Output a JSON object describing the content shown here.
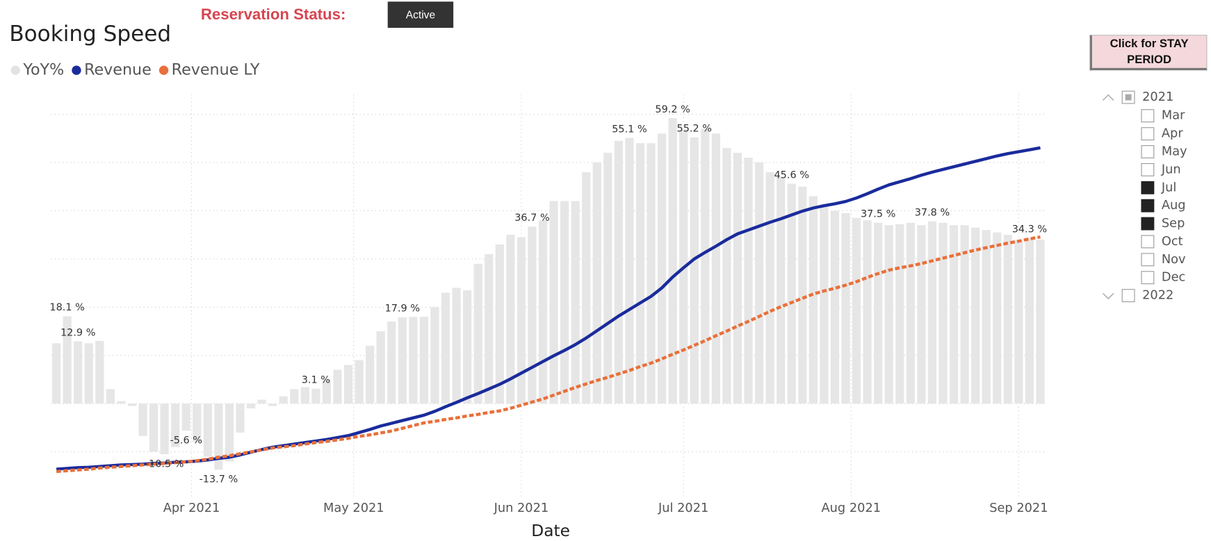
{
  "header": {
    "status_label": "Reservation Status:",
    "status_value": "Active"
  },
  "chart_data": {
    "type": "bar_line",
    "title": "Booking Speed",
    "xlabel": "Date",
    "x": [
      "2021-03-07",
      "2021-03-09",
      "2021-03-11",
      "2021-03-13",
      "2021-03-15",
      "2021-03-17",
      "2021-03-19",
      "2021-03-21",
      "2021-03-23",
      "2021-03-25",
      "2021-03-27",
      "2021-03-29",
      "2021-03-31",
      "2021-04-02",
      "2021-04-04",
      "2021-04-06",
      "2021-04-08",
      "2021-04-10",
      "2021-04-12",
      "2021-04-14",
      "2021-04-16",
      "2021-04-18",
      "2021-04-20",
      "2021-04-22",
      "2021-04-24",
      "2021-04-26",
      "2021-04-28",
      "2021-04-30",
      "2021-05-02",
      "2021-05-04",
      "2021-05-06",
      "2021-05-08",
      "2021-05-10",
      "2021-05-12",
      "2021-05-14",
      "2021-05-16",
      "2021-05-18",
      "2021-05-20",
      "2021-05-22",
      "2021-05-24",
      "2021-05-26",
      "2021-05-28",
      "2021-05-30",
      "2021-06-01",
      "2021-06-03",
      "2021-06-05",
      "2021-06-07",
      "2021-06-09",
      "2021-06-11",
      "2021-06-13",
      "2021-06-15",
      "2021-06-17",
      "2021-06-19",
      "2021-06-21",
      "2021-06-23",
      "2021-06-25",
      "2021-06-27",
      "2021-06-29",
      "2021-07-01",
      "2021-07-03",
      "2021-07-05",
      "2021-07-07",
      "2021-07-09",
      "2021-07-11",
      "2021-07-13",
      "2021-07-15",
      "2021-07-17",
      "2021-07-19",
      "2021-07-21",
      "2021-07-23",
      "2021-07-25",
      "2021-07-27",
      "2021-07-29",
      "2021-07-31",
      "2021-08-02",
      "2021-08-04",
      "2021-08-06",
      "2021-08-08",
      "2021-08-10",
      "2021-08-12",
      "2021-08-14",
      "2021-08-16",
      "2021-08-18",
      "2021-08-20",
      "2021-08-22",
      "2021-08-24",
      "2021-08-26",
      "2021-08-28",
      "2021-08-30",
      "2021-09-01",
      "2021-09-03",
      "2021-09-05"
    ],
    "xlim": [
      "2021-03-06",
      "2021-09-06"
    ],
    "xticks": [
      {
        "value": "2021-04-01",
        "label": "Apr 2021"
      },
      {
        "value": "2021-05-01",
        "label": "May 2021"
      },
      {
        "value": "2021-06-01",
        "label": "Jun 2021"
      },
      {
        "value": "2021-07-01",
        "label": "Jul 2021"
      },
      {
        "value": "2021-08-01",
        "label": "Aug 2021"
      },
      {
        "value": "2021-09-01",
        "label": "Sep 2021"
      }
    ],
    "ylim": [
      -18,
      62
    ],
    "yticks": [
      -10,
      0,
      10,
      20,
      30,
      40,
      50,
      60
    ],
    "y_tick_labels": false,
    "y2lim": [
      0,
      100
    ],
    "grid": true,
    "legend": "top-left",
    "series": [
      {
        "name": "YoY%",
        "type": "bar",
        "color": "#e6e6e6",
        "legend_color": "#e3e3e3",
        "values": [
          12.5,
          18.1,
          12.9,
          12.5,
          13.0,
          3.0,
          0.5,
          -0.5,
          -6.7,
          -10.0,
          -10.5,
          -9.0,
          -5.6,
          -8.0,
          -11.0,
          -13.7,
          -12.0,
          -6.0,
          -1.0,
          0.8,
          -0.5,
          1.5,
          3.0,
          3.4,
          3.1,
          5.0,
          7.0,
          8.0,
          9.0,
          12.0,
          15.0,
          17.0,
          17.9,
          18.0,
          18.0,
          20.0,
          23.0,
          24.0,
          23.5,
          29.0,
          31.0,
          33.0,
          35.0,
          34.5,
          36.7,
          38.0,
          42.0,
          42.0,
          42.0,
          48.0,
          50.0,
          52.0,
          54.5,
          55.1,
          54.0,
          54.0,
          56.0,
          59.2,
          57.0,
          55.2,
          57.0,
          56.0,
          53.0,
          52.0,
          51.0,
          50.0,
          48.0,
          47.0,
          45.6,
          45.0,
          43.0,
          41.0,
          40.0,
          39.5,
          38.5,
          38.0,
          37.5,
          37.0,
          37.2,
          37.5,
          37.0,
          37.8,
          37.5,
          37.0,
          37.0,
          36.5,
          36.0,
          35.5,
          35.0,
          34.0,
          34.3,
          34.0
        ],
        "value_labels": [
          null,
          "18.1 %",
          "12.9 %",
          null,
          null,
          null,
          null,
          null,
          null,
          null,
          "-10.5 %",
          null,
          "-5.6 %",
          null,
          null,
          "-13.7 %",
          null,
          null,
          null,
          null,
          null,
          null,
          null,
          null,
          "3.1 %",
          null,
          null,
          null,
          null,
          null,
          null,
          null,
          "17.9 %",
          null,
          null,
          null,
          null,
          null,
          null,
          null,
          null,
          null,
          null,
          null,
          "36.7 %",
          null,
          null,
          null,
          null,
          null,
          null,
          null,
          null,
          "55.1 %",
          null,
          null,
          null,
          "59.2 %",
          null,
          "55.2 %",
          null,
          null,
          null,
          null,
          null,
          null,
          null,
          null,
          "45.6 %",
          null,
          null,
          null,
          null,
          null,
          null,
          null,
          "37.5 %",
          null,
          null,
          null,
          null,
          "37.8 %",
          null,
          null,
          null,
          null,
          null,
          null,
          null,
          null,
          "34.3 %",
          null
        ]
      },
      {
        "name": "Revenue",
        "type": "line",
        "axis": "y2",
        "color": "#1a2b9c",
        "dashed": false,
        "values": [
          5.5,
          5.7,
          5.9,
          6.0,
          6.2,
          6.4,
          6.6,
          6.7,
          6.8,
          7.0,
          7.1,
          7.3,
          7.4,
          7.6,
          7.9,
          8.3,
          8.6,
          9.2,
          9.9,
          10.6,
          11.2,
          11.6,
          12.0,
          12.4,
          12.8,
          13.2,
          13.7,
          14.2,
          15.0,
          15.8,
          16.7,
          17.4,
          18.1,
          18.8,
          19.5,
          20.5,
          21.7,
          22.8,
          24.0,
          25.1,
          26.3,
          27.5,
          28.9,
          30.4,
          31.9,
          33.4,
          34.9,
          36.3,
          37.8,
          39.5,
          41.4,
          43.3,
          45.2,
          46.9,
          48.6,
          50.3,
          52.5,
          55.3,
          57.7,
          60.0,
          61.7,
          63.3,
          65.0,
          66.5,
          67.5,
          68.5,
          69.5,
          70.4,
          71.4,
          72.4,
          73.2,
          73.8,
          74.3,
          74.9,
          75.8,
          76.9,
          78.1,
          79.2,
          80.0,
          80.8,
          81.7,
          82.5,
          83.2,
          83.9,
          84.6,
          85.3,
          86.0,
          86.7,
          87.3,
          87.8,
          88.3,
          88.8
        ]
      },
      {
        "name": "Revenue LY",
        "type": "line",
        "axis": "y2",
        "color": "#e8703a",
        "dashed": true,
        "values": [
          4.9,
          5.1,
          5.3,
          5.5,
          5.8,
          6.0,
          6.2,
          6.4,
          6.6,
          6.8,
          7.0,
          7.2,
          7.4,
          7.7,
          8.1,
          8.6,
          9.0,
          9.5,
          10.0,
          10.5,
          11.0,
          11.3,
          11.6,
          12.0,
          12.4,
          12.7,
          13.1,
          13.5,
          14.0,
          14.4,
          14.9,
          15.4,
          16.1,
          16.8,
          17.5,
          17.9,
          18.4,
          18.8,
          19.3,
          19.7,
          20.2,
          20.6,
          21.3,
          22.1,
          22.9,
          23.7,
          24.7,
          25.7,
          26.7,
          27.6,
          28.5,
          29.3,
          30.2,
          31.1,
          32.1,
          33.0,
          34.1,
          35.3,
          36.4,
          37.6,
          38.8,
          40.1,
          41.3,
          42.6,
          43.8,
          45.1,
          46.4,
          47.6,
          48.7,
          49.8,
          50.9,
          51.7,
          52.4,
          53.2,
          54.1,
          55.2,
          56.2,
          57.1,
          57.7,
          58.2,
          58.8,
          59.5,
          60.2,
          60.9,
          61.6,
          62.3,
          62.9,
          63.5,
          64.1,
          64.6,
          65.2,
          65.7
        ]
      }
    ]
  },
  "slicer": {
    "button": "Click for STAY PERIOD",
    "years": [
      {
        "label": "2021",
        "state": "partial",
        "expanded": true,
        "months": [
          {
            "label": "Mar",
            "checked": false
          },
          {
            "label": "Apr",
            "checked": false
          },
          {
            "label": "May",
            "checked": false
          },
          {
            "label": "Jun",
            "checked": false
          },
          {
            "label": "Jul",
            "checked": true
          },
          {
            "label": "Aug",
            "checked": true
          },
          {
            "label": "Sep",
            "checked": true
          },
          {
            "label": "Oct",
            "checked": false
          },
          {
            "label": "Nov",
            "checked": false
          },
          {
            "label": "Dec",
            "checked": false
          }
        ]
      },
      {
        "label": "2022",
        "state": "unchecked",
        "expanded": false
      }
    ]
  }
}
